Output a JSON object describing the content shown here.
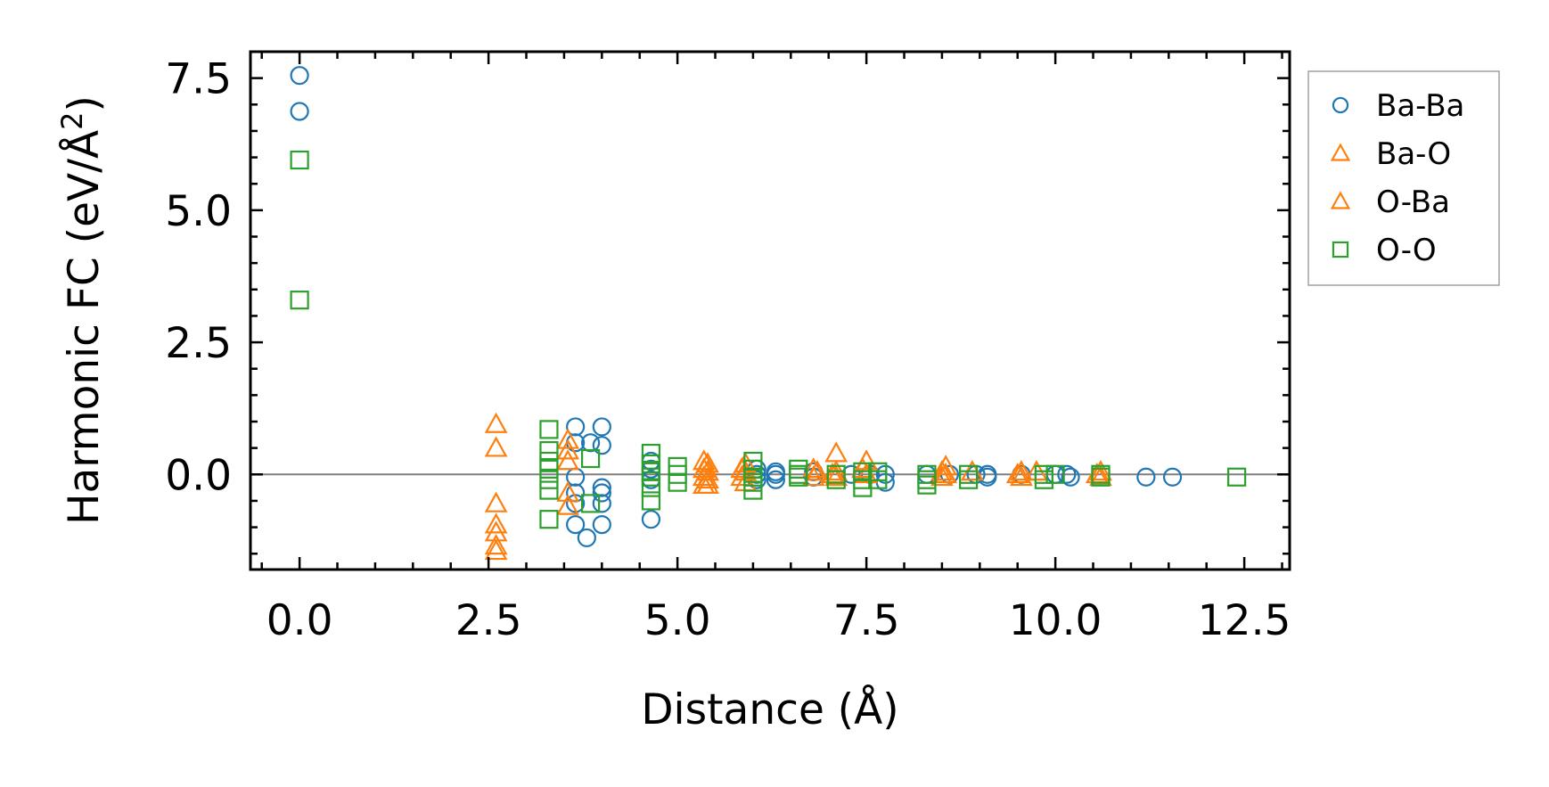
{
  "chart_data": {
    "type": "scatter",
    "title": "",
    "xlabel": "Distance (Å)",
    "ylabel_main": "Harmonic FC (eV/Å",
    "ylabel_sup": "2",
    "ylabel_close": ")",
    "xlim": [
      -0.65,
      13.1
    ],
    "ylim": [
      -1.8,
      8.0
    ],
    "xticks": [
      0.0,
      2.5,
      5.0,
      7.5,
      10.0,
      12.5
    ],
    "xtick_labels": [
      "0.0",
      "2.5",
      "5.0",
      "7.5",
      "10.0",
      "12.5"
    ],
    "yticks": [
      0.0,
      2.5,
      5.0,
      7.5
    ],
    "ytick_labels": [
      "0.0",
      "2.5",
      "5.0",
      "7.5"
    ],
    "x_minor_step": 0.5,
    "y_minor_step": 0.5,
    "zero_line": 0.0,
    "legend_position": "outside-right-top",
    "series": [
      {
        "name": "Ba-Ba",
        "marker": "circle",
        "color": "#1f77b4",
        "points": [
          [
            0.0,
            7.55
          ],
          [
            0.0,
            6.87
          ],
          [
            3.65,
            0.9
          ],
          [
            3.85,
            0.6
          ],
          [
            4.0,
            0.9
          ],
          [
            4.0,
            0.55
          ],
          [
            3.65,
            0.6
          ],
          [
            3.65,
            -0.05
          ],
          [
            3.65,
            -0.35
          ],
          [
            3.65,
            -0.55
          ],
          [
            3.65,
            -0.95
          ],
          [
            3.8,
            -1.2
          ],
          [
            4.0,
            -0.25
          ],
          [
            4.0,
            -0.35
          ],
          [
            4.0,
            -0.55
          ],
          [
            4.0,
            -0.95
          ],
          [
            4.65,
            0.25
          ],
          [
            4.65,
            0.1
          ],
          [
            4.65,
            -0.1
          ],
          [
            4.65,
            -0.85
          ],
          [
            6.05,
            0.1
          ],
          [
            6.05,
            0.0
          ],
          [
            6.05,
            -0.1
          ],
          [
            6.3,
            0.05
          ],
          [
            6.3,
            0.0
          ],
          [
            6.3,
            -0.1
          ],
          [
            6.8,
            0.05
          ],
          [
            6.8,
            -0.05
          ],
          [
            7.3,
            0.0
          ],
          [
            7.55,
            0.0
          ],
          [
            7.75,
            0.0
          ],
          [
            7.75,
            -0.15
          ],
          [
            8.3,
            0.0
          ],
          [
            8.6,
            0.0
          ],
          [
            8.95,
            0.0
          ],
          [
            9.1,
            0.0
          ],
          [
            9.1,
            -0.05
          ],
          [
            9.55,
            0.0
          ],
          [
            10.0,
            0.0
          ],
          [
            10.15,
            0.0
          ],
          [
            10.2,
            -0.05
          ],
          [
            11.2,
            -0.05
          ],
          [
            11.55,
            -0.05
          ]
        ]
      },
      {
        "name": "Ba-O",
        "marker": "triangle",
        "color": "#ff7f0e",
        "points": [
          [
            2.6,
            0.95
          ],
          [
            2.6,
            0.5
          ],
          [
            2.6,
            -0.55
          ],
          [
            2.6,
            -0.95
          ],
          [
            2.6,
            -1.1
          ],
          [
            2.6,
            -1.35
          ],
          [
            2.6,
            -1.45
          ],
          [
            3.55,
            0.65
          ],
          [
            3.55,
            0.45
          ],
          [
            3.55,
            0.25
          ],
          [
            3.55,
            -0.35
          ],
          [
            3.55,
            -0.6
          ],
          [
            5.35,
            0.25
          ],
          [
            5.35,
            0.1
          ],
          [
            5.35,
            -0.05
          ],
          [
            5.35,
            -0.2
          ],
          [
            5.9,
            0.2
          ],
          [
            5.9,
            0.05
          ],
          [
            5.9,
            -0.15
          ],
          [
            6.8,
            0.1
          ],
          [
            6.8,
            -0.05
          ],
          [
            7.1,
            0.4
          ],
          [
            7.1,
            0.05
          ],
          [
            7.1,
            -0.05
          ],
          [
            7.5,
            0.25
          ],
          [
            7.5,
            0.0
          ],
          [
            8.55,
            0.15
          ],
          [
            8.55,
            0.0
          ],
          [
            8.9,
            0.05
          ],
          [
            9.55,
            0.05
          ],
          [
            9.55,
            -0.05
          ],
          [
            9.75,
            0.05
          ],
          [
            10.6,
            0.05
          ],
          [
            10.6,
            -0.05
          ]
        ]
      },
      {
        "name": "O-Ba",
        "marker": "triangle",
        "color": "#ff7f0e",
        "points": [
          [
            5.4,
            0.2
          ],
          [
            5.4,
            0.05
          ],
          [
            5.4,
            -0.1
          ],
          [
            5.4,
            -0.2
          ],
          [
            5.85,
            0.1
          ],
          [
            5.85,
            -0.05
          ],
          [
            6.85,
            0.05
          ],
          [
            7.05,
            0.0
          ],
          [
            7.45,
            0.1
          ],
          [
            8.5,
            0.05
          ],
          [
            8.5,
            -0.05
          ],
          [
            9.5,
            0.0
          ],
          [
            10.55,
            0.0
          ]
        ]
      },
      {
        "name": "O-O",
        "marker": "square",
        "color": "#2ca02c",
        "points": [
          [
            0.0,
            5.95
          ],
          [
            0.0,
            3.3
          ],
          [
            3.3,
            0.85
          ],
          [
            3.3,
            0.45
          ],
          [
            3.3,
            0.25
          ],
          [
            3.3,
            0.1
          ],
          [
            3.3,
            -0.1
          ],
          [
            3.3,
            -0.3
          ],
          [
            3.3,
            -0.85
          ],
          [
            3.85,
            0.3
          ],
          [
            3.85,
            -0.55
          ],
          [
            4.65,
            0.4
          ],
          [
            4.65,
            0.2
          ],
          [
            4.65,
            0.05
          ],
          [
            4.65,
            -0.05
          ],
          [
            4.65,
            -0.25
          ],
          [
            4.65,
            -0.5
          ],
          [
            5.0,
            0.15
          ],
          [
            5.0,
            0.0
          ],
          [
            5.0,
            -0.15
          ],
          [
            6.0,
            0.25
          ],
          [
            6.0,
            0.1
          ],
          [
            6.0,
            -0.05
          ],
          [
            6.0,
            -0.15
          ],
          [
            6.0,
            -0.3
          ],
          [
            6.6,
            0.1
          ],
          [
            6.6,
            0.0
          ],
          [
            6.6,
            -0.05
          ],
          [
            7.1,
            0.0
          ],
          [
            7.1,
            -0.1
          ],
          [
            7.45,
            0.05
          ],
          [
            7.45,
            -0.1
          ],
          [
            7.45,
            -0.25
          ],
          [
            7.65,
            0.05
          ],
          [
            7.65,
            -0.1
          ],
          [
            8.3,
            0.0
          ],
          [
            8.3,
            -0.1
          ],
          [
            8.3,
            -0.2
          ],
          [
            8.85,
            0.0
          ],
          [
            8.85,
            -0.1
          ],
          [
            9.85,
            0.0
          ],
          [
            9.85,
            -0.1
          ],
          [
            10.0,
            0.0
          ],
          [
            10.6,
            0.0
          ],
          [
            10.6,
            -0.05
          ],
          [
            12.4,
            -0.05
          ]
        ]
      }
    ]
  }
}
